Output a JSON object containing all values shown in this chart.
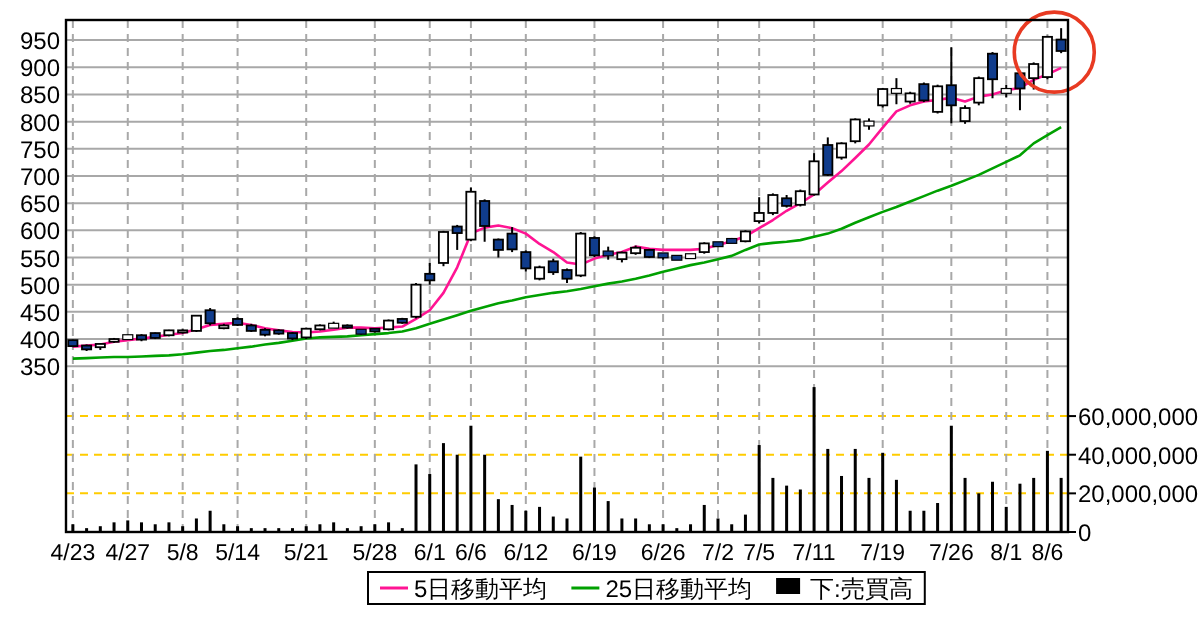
{
  "chart_data": {
    "type": "candlestick",
    "colors": [
      "#103c8c",
      "#103c8c",
      "#ffffff",
      "#ffffff",
      "#ffffff",
      "#103c8c",
      "#103c8c",
      "#ffffff",
      "#ffffff",
      "#ffffff",
      "#103c8c",
      "#ffffff",
      "#103c8c",
      "#103c8c",
      "#103c8c",
      "#103c8c",
      "#103c8c",
      "#ffffff",
      "#ffffff",
      "#ffffff",
      "#103c8c",
      "#103c8c",
      "#103c8c",
      "#ffffff",
      "#103c8c",
      "#ffffff",
      "#103c8c",
      "#ffffff",
      "#103c8c",
      "#ffffff",
      "#103c8c",
      "#103c8c",
      "#103c8c",
      "#103c8c",
      "#ffffff",
      "#103c8c",
      "#103c8c",
      "#ffffff",
      "#103c8c",
      "#103c8c",
      "#ffffff",
      "#ffffff",
      "#103c8c",
      "#103c8c",
      "#103c8c",
      "#ffffff",
      "#ffffff",
      "#103c8c",
      "#103c8c",
      "#ffffff",
      "#ffffff",
      "#ffffff",
      "#103c8c",
      "#ffffff",
      "#ffffff",
      "#103c8c",
      "#ffffff",
      "#ffffff",
      "#ffffff",
      "#ffffff",
      "#ffffff",
      "#ffffff",
      "#103c8c",
      "#ffffff",
      "#103c8c",
      "#ffffff",
      "#ffffff",
      "#103c8c",
      "#ffffff",
      "#103c8c",
      "#ffffff",
      "#ffffff",
      "#103c8c"
    ],
    "categories": [
      "4/23",
      null,
      null,
      null,
      "4/27",
      null,
      null,
      null,
      "5/8",
      null,
      null,
      null,
      "5/14",
      null,
      null,
      null,
      null,
      "5/21",
      null,
      null,
      null,
      null,
      "5/28",
      null,
      null,
      null,
      "6/1",
      null,
      null,
      "6/6",
      null,
      null,
      null,
      "6/12",
      null,
      null,
      null,
      null,
      "6/19",
      null,
      null,
      null,
      null,
      "6/26",
      null,
      null,
      null,
      "7/2",
      null,
      null,
      "7/5",
      null,
      null,
      null,
      "7/11",
      null,
      null,
      null,
      null,
      "7/19",
      null,
      null,
      null,
      null,
      "7/26",
      null,
      null,
      null,
      "8/1",
      null,
      null,
      "8/6",
      null
    ],
    "ohlc": [
      [
        398,
        399,
        385,
        387
      ],
      [
        388,
        390,
        378,
        381
      ],
      [
        385,
        392,
        380,
        391
      ],
      [
        395,
        402,
        393,
        400
      ],
      [
        403,
        408,
        400,
        404
      ],
      [
        407,
        409,
        396,
        399
      ],
      [
        411,
        412,
        400,
        402
      ],
      [
        407,
        417,
        405,
        416
      ],
      [
        412,
        418,
        410,
        416
      ],
      [
        415,
        444,
        413,
        443
      ],
      [
        453,
        457,
        425,
        429
      ],
      [
        420,
        428,
        418,
        425
      ],
      [
        437,
        440,
        424,
        426
      ],
      [
        425,
        428,
        413,
        415
      ],
      [
        417,
        420,
        405,
        408
      ],
      [
        416,
        418,
        408,
        410
      ],
      [
        411,
        413,
        398,
        401
      ],
      [
        403,
        421,
        400,
        419
      ],
      [
        418,
        427,
        416,
        425
      ],
      [
        424,
        432,
        422,
        425
      ],
      [
        425,
        427,
        419,
        421
      ],
      [
        414,
        416,
        408,
        413
      ],
      [
        419,
        420,
        412,
        414
      ],
      [
        418,
        436,
        416,
        434
      ],
      [
        437,
        439,
        428,
        430
      ],
      [
        441,
        503,
        438,
        500
      ],
      [
        520,
        540,
        500,
        508
      ],
      [
        540,
        599,
        534,
        597
      ],
      [
        607,
        610,
        564,
        595
      ],
      [
        583,
        679,
        580,
        671
      ],
      [
        654,
        657,
        579,
        608
      ],
      [
        583,
        585,
        550,
        564
      ],
      [
        594,
        606,
        560,
        565
      ],
      [
        560,
        563,
        524,
        530
      ],
      [
        511,
        535,
        508,
        532
      ],
      [
        543,
        548,
        518,
        523
      ],
      [
        527,
        530,
        503,
        511
      ],
      [
        517,
        597,
        514,
        594
      ],
      [
        586,
        589,
        551,
        554
      ],
      [
        558,
        570,
        546,
        557
      ],
      [
        547,
        561,
        541,
        559
      ],
      [
        558,
        572,
        555,
        568
      ],
      [
        564,
        566,
        549,
        551
      ],
      [
        555,
        557,
        546,
        553
      ],
      [
        550,
        552,
        546,
        549
      ],
      [
        552,
        555,
        549,
        553
      ],
      [
        560,
        578,
        557,
        576
      ],
      [
        575,
        578,
        570,
        574
      ],
      [
        582,
        586,
        577,
        579
      ],
      [
        580,
        600,
        578,
        598
      ],
      [
        617,
        661,
        613,
        632
      ],
      [
        632,
        668,
        628,
        665
      ],
      [
        659,
        665,
        642,
        645
      ],
      [
        647,
        675,
        644,
        672
      ],
      [
        666,
        742,
        664,
        727
      ],
      [
        757,
        771,
        700,
        702
      ],
      [
        734,
        762,
        730,
        760
      ],
      [
        764,
        806,
        760,
        804
      ],
      [
        796,
        806,
        785,
        797
      ],
      [
        830,
        862,
        826,
        860
      ],
      [
        856,
        880,
        832,
        857
      ],
      [
        837,
        855,
        833,
        852
      ],
      [
        869,
        872,
        836,
        839
      ],
      [
        818,
        868,
        815,
        865
      ],
      [
        867,
        937,
        797,
        830
      ],
      [
        801,
        830,
        796,
        825
      ],
      [
        835,
        883,
        830,
        880
      ],
      [
        925,
        928,
        843,
        878
      ],
      [
        856,
        868,
        845,
        857
      ],
      [
        889,
        891,
        821,
        861
      ],
      [
        880,
        909,
        859,
        906
      ],
      [
        882,
        958,
        878,
        956
      ],
      [
        951,
        972,
        926,
        930
      ]
    ],
    "series": [
      {
        "name": "5日移動平均",
        "type": "line",
        "color": "#ff1493",
        "values": [
          386,
          388,
          390,
          395,
          398,
          401,
          404,
          408,
          411,
          418,
          426,
          428,
          430,
          426,
          420,
          416,
          413,
          412,
          414,
          417,
          421,
          421,
          420,
          421,
          423,
          437,
          453,
          485,
          532,
          594,
          605,
          609,
          604,
          594,
          575,
          560,
          541,
          537,
          548,
          555,
          560,
          570,
          566,
          564,
          564,
          564,
          566,
          573,
          580,
          589,
          604,
          619,
          636,
          650,
          666,
          688,
          709,
          733,
          758,
          789,
          819,
          830,
          837,
          840,
          844,
          837,
          846,
          850,
          858,
          862,
          877,
          887,
          899
        ]
      },
      {
        "name": "25日移動平均",
        "type": "line",
        "color": "#00a000",
        "values": [
          364,
          365,
          366,
          367,
          367,
          368,
          369,
          370,
          372,
          375,
          378,
          380,
          383,
          386,
          390,
          393,
          397,
          401,
          403,
          404,
          405,
          407,
          409,
          411,
          414,
          420,
          428,
          436,
          444,
          452,
          459,
          466,
          471,
          477,
          481,
          485,
          488,
          492,
          497,
          502,
          506,
          511,
          517,
          524,
          530,
          536,
          541,
          547,
          553,
          564,
          574,
          577,
          579,
          582,
          588,
          594,
          603,
          614,
          624,
          634,
          643,
          653,
          663,
          673,
          682,
          692,
          702,
          714,
          726,
          738,
          760,
          775,
          790
        ]
      },
      {
        "name": "下:売買高",
        "type": "bar",
        "axis": "y2",
        "color": "#000000",
        "values": [
          4000000,
          2000000,
          3000000,
          5000000,
          6000000,
          5000000,
          4000000,
          5000000,
          3000000,
          7000000,
          11000000,
          4000000,
          3000000,
          2000000,
          2000000,
          2000000,
          2000000,
          3000000,
          4000000,
          5000000,
          2000000,
          3000000,
          4000000,
          5000000,
          2000000,
          35000000,
          30000000,
          46000000,
          40000000,
          55000000,
          40000000,
          17000000,
          14000000,
          11000000,
          13000000,
          8000000,
          7000000,
          39000000,
          23000000,
          16000000,
          7000000,
          7000000,
          4000000,
          4000000,
          2000000,
          4000000,
          14000000,
          7000000,
          4000000,
          9000000,
          45000000,
          28000000,
          24000000,
          22000000,
          75000000,
          43000000,
          29000000,
          43000000,
          28000000,
          41000000,
          27000000,
          11000000,
          11000000,
          15000000,
          55000000,
          28000000,
          20000000,
          26000000,
          13000000,
          25000000,
          28000000,
          42000000,
          28000000
        ]
      }
    ],
    "ylim": [
      45,
      987
    ],
    "yticks": [
      350,
      400,
      450,
      500,
      550,
      600,
      650,
      700,
      750,
      800,
      850,
      900,
      950
    ],
    "y2lim": [
      0,
      265000000
    ],
    "y2ticks": [
      0,
      {
        "value": 20000000,
        "label": "20,000,000"
      },
      {
        "value": 40000000,
        "label": "40,000,000"
      },
      {
        "value": 60000000,
        "label": "60,000,000"
      }
    ],
    "grid": true,
    "legend": "bottom"
  }
}
